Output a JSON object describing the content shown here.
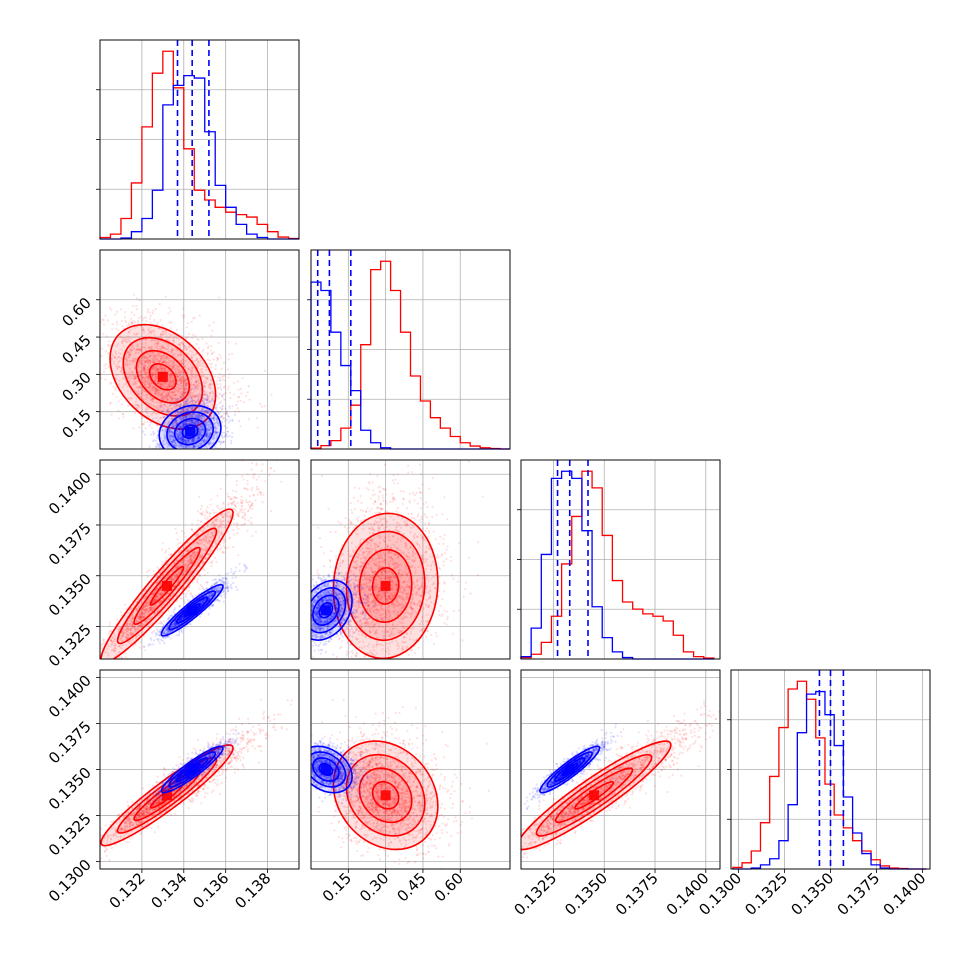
{
  "chart_data": {
    "type": "corner",
    "colors": {
      "series_a": "#ff0000",
      "series_b": "#0000ff",
      "grid": "#b0b0b0"
    },
    "series": [
      {
        "color": "red"
      },
      {
        "color": "blue"
      }
    ],
    "dimensions": [
      {
        "index": 0,
        "range": [
          0.13,
          0.1395
        ],
        "x_ticks": [
          0.132,
          0.134,
          0.136,
          0.138
        ],
        "x_tick_labels": [
          "0.132",
          "0.134",
          "0.136",
          "0.138"
        ]
      },
      {
        "index": 1,
        "range": [
          0.0,
          0.8
        ],
        "y_ticks": [
          0.15,
          0.3,
          0.45,
          0.6
        ],
        "y_tick_labels": [
          "0.15",
          "0.30",
          "0.45",
          "0.60"
        ],
        "x_ticks": [
          0.15,
          0.3,
          0.45,
          0.6
        ],
        "x_tick_labels": [
          "0.15",
          "0.30",
          "0.45",
          "0.60"
        ]
      },
      {
        "index": 2,
        "range": [
          0.1309,
          0.1407
        ],
        "y_ticks": [
          0.1325,
          0.135,
          0.1375,
          0.14
        ],
        "y_tick_labels": [
          "0.1325",
          "0.1350",
          "0.1375",
          "0.1400"
        ],
        "x_ticks": [
          0.1325,
          0.135,
          0.1375,
          0.14
        ],
        "x_tick_labels": [
          "0.1325",
          "0.1350",
          "0.1375",
          "0.1400"
        ]
      },
      {
        "index": 3,
        "range": [
          0.1296,
          0.1404
        ],
        "y_ticks": [
          0.13,
          0.1325,
          0.135,
          0.1375,
          0.14
        ],
        "y_tick_labels": [
          "0.1300",
          "0.1325",
          "0.1350",
          "0.1375",
          "0.1400"
        ],
        "x_ticks": [
          0.13,
          0.1325,
          0.135,
          0.1375,
          0.14
        ],
        "x_tick_labels": [
          "0.1300",
          "0.1325",
          "0.1350",
          "0.1375",
          "0.1400"
        ]
      }
    ],
    "histograms": [
      {
        "dim": 0,
        "red": {
          "edges": [
            0.13,
            0.1305,
            0.131,
            0.1315,
            0.132,
            0.1325,
            0.133,
            0.1335,
            0.134,
            0.1345,
            0.135,
            0.1355,
            0.136,
            0.1365,
            0.137,
            0.1375,
            0.138,
            0.1385,
            0.139,
            0.1395
          ],
          "counts": [
            0.3,
            1.0,
            4.2,
            11.5,
            23.0,
            34.0,
            38.5,
            31.0,
            18.5,
            10.0,
            8.0,
            6.5,
            5.5,
            5.0,
            4.5,
            3.0,
            1.5,
            0.4,
            0.1
          ]
        },
        "blue": {
          "edges": [
            0.13,
            0.1305,
            0.131,
            0.1315,
            0.132,
            0.1325,
            0.133,
            0.1335,
            0.134,
            0.1345,
            0.135,
            0.1355,
            0.136,
            0.1365,
            0.137,
            0.1375,
            0.138,
            0.1385,
            0.139,
            0.1395
          ],
          "counts": [
            0,
            0,
            0.2,
            1.5,
            4.2,
            10.0,
            27.5,
            31.5,
            33.5,
            33.0,
            22.0,
            11.0,
            6.5,
            3.0,
            1.0,
            0.3,
            0,
            0,
            0
          ]
        },
        "quantiles": [
          0.1337,
          0.1344,
          0.1352
        ]
      },
      {
        "dim": 1,
        "red": {
          "edges": [
            0.0,
            0.04,
            0.08,
            0.12,
            0.16,
            0.2,
            0.24,
            0.28,
            0.32,
            0.36,
            0.4,
            0.44,
            0.48,
            0.52,
            0.56,
            0.6,
            0.64,
            0.68,
            0.72,
            0.76,
            0.8
          ],
          "counts": [
            0.2,
            0.8,
            2.0,
            5.0,
            10.5,
            25.0,
            43.0,
            45.0,
            38.0,
            28.0,
            17.5,
            11.5,
            7.5,
            5.0,
            3.0,
            1.5,
            0.7,
            0.3,
            0.1,
            0
          ]
        },
        "blue": {
          "edges": [
            0.0,
            0.04,
            0.08,
            0.12,
            0.16,
            0.2,
            0.24,
            0.28,
            0.32,
            0.36,
            0.4,
            0.44,
            0.48,
            0.52,
            0.56,
            0.6,
            0.64,
            0.68,
            0.72,
            0.76,
            0.8
          ],
          "counts": [
            40.0,
            38.0,
            28.0,
            20.0,
            14.0,
            4.5,
            1.5,
            0.3,
            0,
            0,
            0,
            0,
            0,
            0,
            0,
            0,
            0,
            0,
            0,
            0
          ]
        },
        "quantiles": [
          0.027,
          0.074,
          0.16
        ]
      },
      {
        "dim": 2,
        "red": {
          "edges": [
            0.1309,
            0.1314,
            0.1319,
            0.1324,
            0.1329,
            0.1334,
            0.1339,
            0.1344,
            0.1349,
            0.1354,
            0.1359,
            0.1364,
            0.1369,
            0.1374,
            0.1379,
            0.1384,
            0.1389,
            0.1394,
            0.1399,
            0.1404
          ],
          "counts": [
            0.3,
            1.0,
            3.5,
            9.0,
            20.0,
            30.0,
            39.5,
            36.0,
            26.0,
            16.5,
            12.0,
            10.5,
            9.5,
            9.0,
            8.0,
            5.0,
            1.5,
            0.5,
            0.2
          ]
        },
        "blue": {
          "edges": [
            0.1309,
            0.1314,
            0.1319,
            0.1324,
            0.1329,
            0.1334,
            0.1339,
            0.1344,
            0.1349,
            0.1354,
            0.1359,
            0.1364,
            0.1369,
            0.1374,
            0.1379,
            0.1384,
            0.1389,
            0.1394,
            0.1399,
            0.1404
          ],
          "counts": [
            0.5,
            6.5,
            22.0,
            38.0,
            39.5,
            38.0,
            27.0,
            11.0,
            4.5,
            1.5,
            0.3,
            0,
            0,
            0,
            0,
            0,
            0,
            0,
            0
          ]
        },
        "quantiles": [
          0.1327,
          0.1333,
          0.1342
        ]
      },
      {
        "dim": 3,
        "red": {
          "edges": [
            0.1297,
            0.1302,
            0.1307,
            0.1312,
            0.1317,
            0.1322,
            0.1327,
            0.1332,
            0.1337,
            0.1342,
            0.1347,
            0.1352,
            0.1357,
            0.1362,
            0.1367,
            0.1372,
            0.1377,
            0.1382,
            0.1387,
            0.1392,
            0.1397,
            0.1402
          ],
          "counts": [
            0.3,
            1.2,
            3.5,
            9.0,
            18.0,
            27.5,
            35.0,
            36.5,
            33.0,
            25.5,
            16.5,
            10.5,
            8.0,
            5.5,
            3.5,
            1.8,
            0.6,
            0.2,
            0.1,
            0,
            0
          ]
        },
        "blue": {
          "edges": [
            0.1297,
            0.1302,
            0.1307,
            0.1312,
            0.1317,
            0.1322,
            0.1327,
            0.1332,
            0.1337,
            0.1342,
            0.1347,
            0.1352,
            0.1357,
            0.1362,
            0.1367,
            0.1372,
            0.1377,
            0.1382,
            0.1387,
            0.1392,
            0.1397,
            0.1402
          ],
          "counts": [
            0,
            0,
            0.2,
            0.8,
            2.0,
            5.5,
            12.5,
            26.5,
            34.0,
            34.5,
            30.0,
            24.0,
            14.0,
            7.0,
            3.0,
            0.8,
            0.2,
            0,
            0,
            0,
            0
          ]
        },
        "quantiles": [
          0.1344,
          0.135,
          0.1357
        ]
      }
    ],
    "scatter_panels": [
      {
        "row": 1,
        "col": 0,
        "red": {
          "mean": [
            0.133,
            0.29
          ],
          "sd": [
            0.0012,
            0.1
          ],
          "rho": -0.35,
          "skew": [
            1.0,
            0.6
          ]
        },
        "blue": {
          "mean": [
            0.1343,
            0.07
          ],
          "sd": [
            0.0007,
            0.05
          ],
          "rho": 0.15,
          "skew": [
            0.3,
            1.0
          ]
        }
      },
      {
        "row": 2,
        "col": 0,
        "red": {
          "mean": [
            0.1332,
            0.1345
          ],
          "sd": [
            0.0015,
            0.0018
          ],
          "rho": 0.95,
          "skew": [
            1.2,
            1.2
          ]
        },
        "blue": {
          "mean": [
            0.1344,
            0.1333
          ],
          "sd": [
            0.0007,
            0.0006
          ],
          "rho": 0.93,
          "skew": [
            0.4,
            0.4
          ]
        }
      },
      {
        "row": 2,
        "col": 1,
        "red": {
          "mean": [
            0.3,
            0.1345
          ],
          "sd": [
            0.1,
            0.0017
          ],
          "rho": 0.05,
          "skew": [
            0.6,
            1.1
          ]
        },
        "blue": {
          "mean": [
            0.06,
            0.1333
          ],
          "sd": [
            0.05,
            0.0007
          ],
          "rho": 0.3,
          "skew": [
            0.8,
            0.3
          ]
        }
      },
      {
        "row": 3,
        "col": 0,
        "red": {
          "mean": [
            0.1332,
            0.1336
          ],
          "sd": [
            0.0015,
            0.0013
          ],
          "rho": 0.94,
          "skew": [
            1.2,
            0.9
          ]
        },
        "blue": {
          "mean": [
            0.1344,
            0.135
          ],
          "sd": [
            0.0007,
            0.0006
          ],
          "rho": 0.92,
          "skew": [
            0.4,
            0.4
          ]
        }
      },
      {
        "row": 3,
        "col": 1,
        "red": {
          "mean": [
            0.3,
            0.1336
          ],
          "sd": [
            0.1,
            0.0014
          ],
          "rho": -0.2,
          "skew": [
            0.6,
            0.6
          ]
        },
        "blue": {
          "mean": [
            0.06,
            0.135
          ],
          "sd": [
            0.05,
            0.0006
          ],
          "rho": -0.3,
          "skew": [
            0.8,
            0.3
          ]
        }
      },
      {
        "row": 3,
        "col": 2,
        "red": {
          "mean": [
            0.1345,
            0.1336
          ],
          "sd": [
            0.0018,
            0.0014
          ],
          "rho": 0.93,
          "skew": [
            1.2,
            1.0
          ]
        },
        "blue": {
          "mean": [
            0.1333,
            0.135
          ],
          "sd": [
            0.0007,
            0.0006
          ],
          "rho": 0.92,
          "skew": [
            0.4,
            0.4
          ]
        }
      }
    ],
    "grid": true,
    "contour_levels": [
      0.5,
      1.0,
      1.5,
      2.0
    ]
  }
}
